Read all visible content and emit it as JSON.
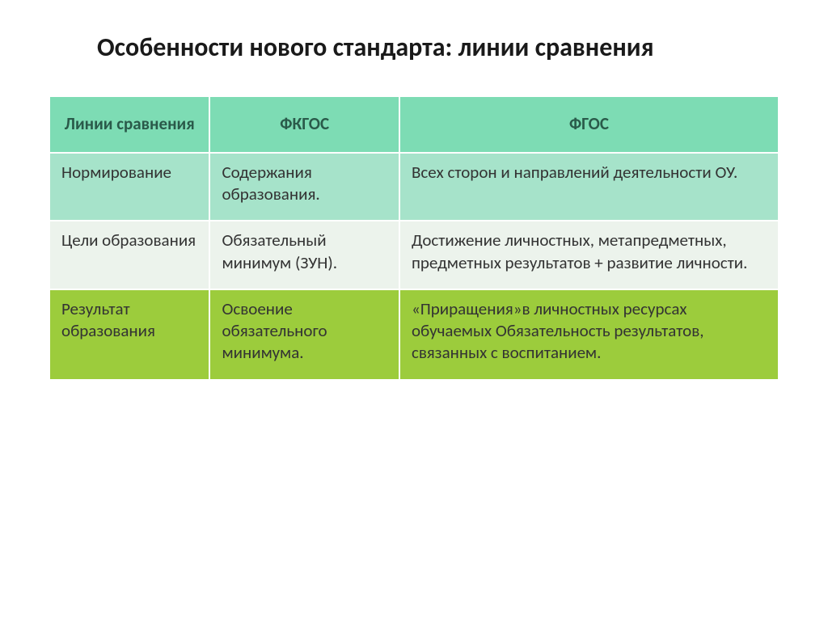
{
  "title": "Особенности нового стандарта: линии сравнения",
  "table": {
    "header_bg": "#7ddcb4",
    "header_text_color": "#2a5a4a",
    "row_colors": [
      "#a6e3ca",
      "#ecf3ec",
      "#9ccc3c"
    ],
    "columns": [
      {
        "label": "Линии сравнения",
        "width": "22%"
      },
      {
        "label": "ФКГОС",
        "width": "26%"
      },
      {
        "label": "ФГОС",
        "width": "52%"
      }
    ],
    "rows": [
      {
        "c0": "Нормирование",
        "c1": "Содержания образования.",
        "c2": "Всех сторон и направлений деятельности ОУ."
      },
      {
        "c0": "Цели образования",
        "c1": "Обязательный минимум (ЗУН).",
        "c2": "Достижение личностных, метапредметных, предметных результатов + развитие личности."
      },
      {
        "c0": "Результат образования",
        "c1": "Освоение обязательного минимума.",
        "c2": "«Приращения»в личностных ресурсах обучаемых Обязательность результатов, связанных с воспитанием."
      }
    ]
  },
  "fonts": {
    "title_size": 32,
    "cell_size": 21,
    "title_weight": 700,
    "header_weight": 700
  }
}
